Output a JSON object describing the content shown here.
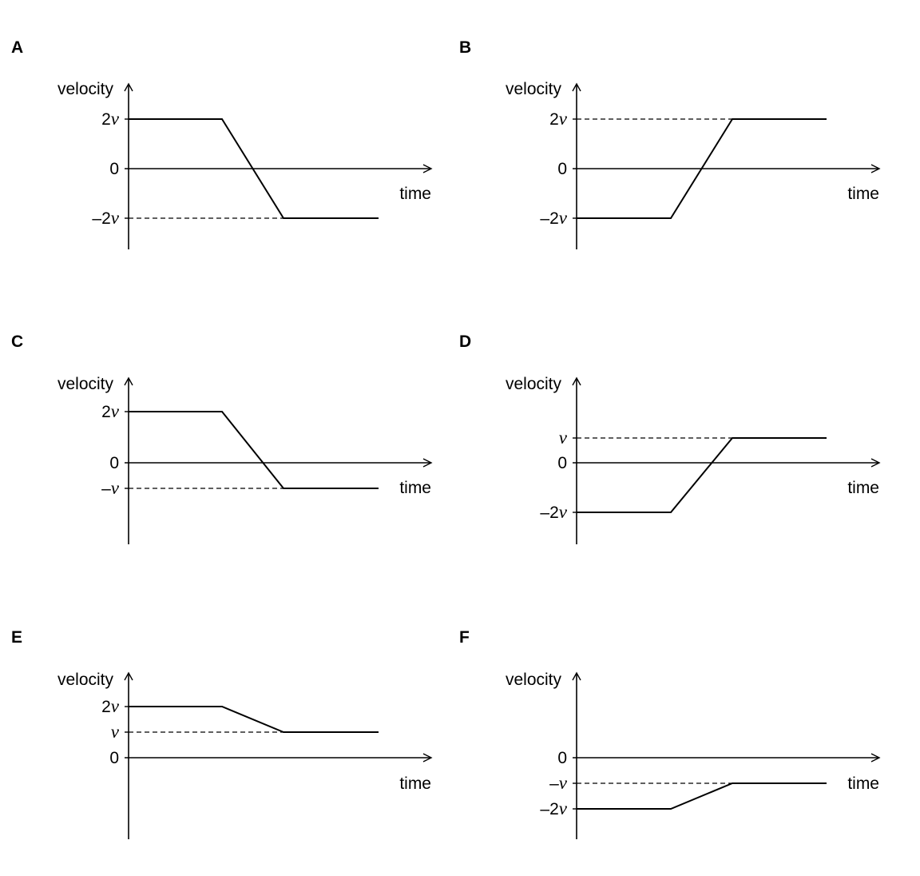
{
  "chart_data": [
    {
      "type": "line",
      "panel": "A",
      "xlabel": "time",
      "ylabel": "velocity",
      "zero_label": "0",
      "ticks": [
        {
          "value": 2,
          "prefix": "2",
          "sym": "v"
        },
        {
          "value": -2,
          "prefix": "–2",
          "sym": "v"
        }
      ],
      "guides": [
        -2
      ],
      "x": [
        0,
        1.5,
        2.5,
        4
      ],
      "y": [
        2,
        2,
        -2,
        -2
      ]
    },
    {
      "type": "line",
      "panel": "B",
      "xlabel": "time",
      "ylabel": "velocity",
      "zero_label": "0",
      "ticks": [
        {
          "value": 2,
          "prefix": "2",
          "sym": "v"
        },
        {
          "value": -2,
          "prefix": "–2",
          "sym": "v"
        }
      ],
      "guides": [
        2
      ],
      "x": [
        0,
        1.5,
        2.5,
        4
      ],
      "y": [
        -2,
        -2,
        2,
        2
      ]
    },
    {
      "type": "line",
      "panel": "C",
      "xlabel": "time",
      "ylabel": "velocity",
      "zero_label": "0",
      "ticks": [
        {
          "value": 2,
          "prefix": "2",
          "sym": "v"
        },
        {
          "value": -1,
          "prefix": "–",
          "sym": "v"
        }
      ],
      "guides": [
        -1
      ],
      "x": [
        0,
        1.5,
        2.5,
        4
      ],
      "y": [
        2,
        2,
        -1,
        -1
      ]
    },
    {
      "type": "line",
      "panel": "D",
      "xlabel": "time",
      "ylabel": "velocity",
      "zero_label": "0",
      "ticks": [
        {
          "value": 1,
          "prefix": "",
          "sym": "v"
        },
        {
          "value": -2,
          "prefix": "–2",
          "sym": "v"
        }
      ],
      "guides": [
        1
      ],
      "x": [
        0,
        1.5,
        2.5,
        4
      ],
      "y": [
        -2,
        -2,
        1,
        1
      ]
    },
    {
      "type": "line",
      "panel": "E",
      "xlabel": "time",
      "ylabel": "velocity",
      "zero_label": "0",
      "ticks": [
        {
          "value": 2,
          "prefix": "2",
          "sym": "v"
        },
        {
          "value": 1,
          "prefix": "",
          "sym": "v"
        }
      ],
      "guides": [
        1
      ],
      "x": [
        0,
        1.5,
        2.5,
        4
      ],
      "y": [
        2,
        2,
        1,
        1
      ]
    },
    {
      "type": "line",
      "panel": "F",
      "xlabel": "time",
      "ylabel": "velocity",
      "zero_label": "0",
      "ticks": [
        {
          "value": -1,
          "prefix": "–",
          "sym": "v"
        },
        {
          "value": -2,
          "prefix": "–2",
          "sym": "v"
        }
      ],
      "guides": [
        -1
      ],
      "x": [
        0,
        1.5,
        2.5,
        4
      ],
      "y": [
        -2,
        -2,
        -1,
        -1
      ]
    }
  ]
}
